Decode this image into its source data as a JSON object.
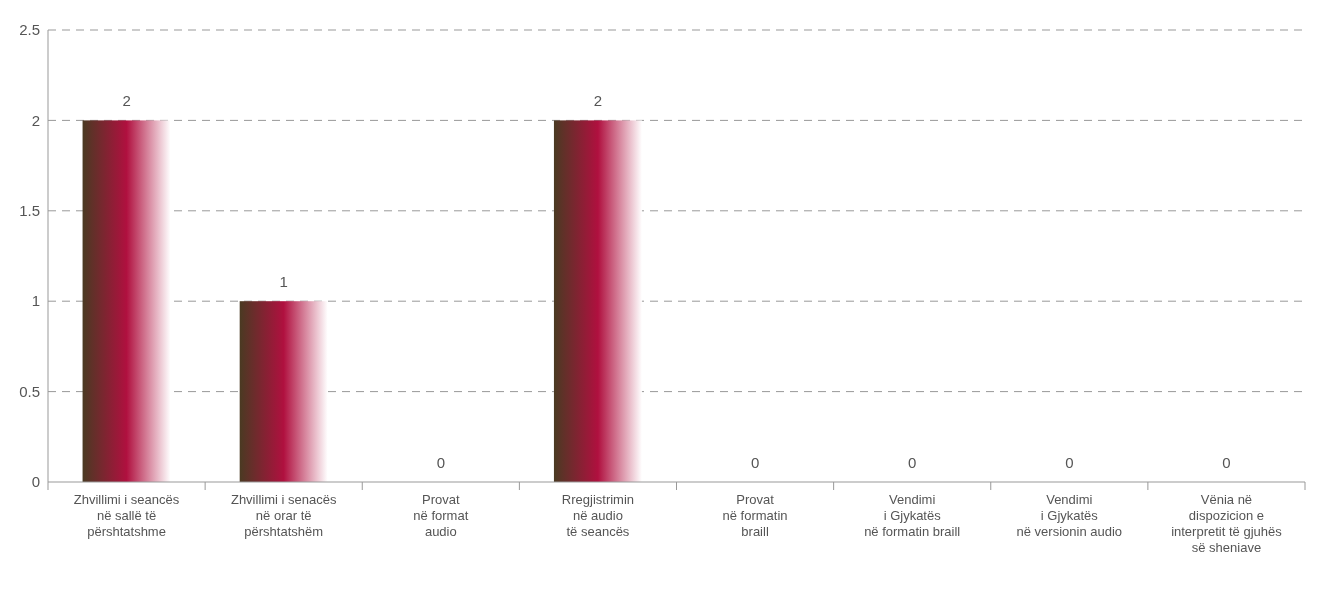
{
  "chart_data": {
    "type": "bar",
    "categories": [
      "Zhvillimi i seancës\nnë sallë të\npërshtatshme",
      "Zhvillimi i senacës\nnë orar të\npërshtatshëm",
      "Provat\nnë format\naudio",
      "Rregjistrimin\nnë audio\ntë seancës",
      "Provat\nnë formatin\nbraill",
      "Vendimi\ni Gjykatës\nnë formatin braill",
      "Vendimi\ni Gjykatës\nnë versionin audio",
      "Vënia në\ndispozicion e\ninterpretit të gjuhës\nsë sheniave"
    ],
    "values": [
      2,
      1,
      0,
      2,
      0,
      0,
      0,
      0
    ],
    "color": "#b0103f",
    "ylim": [
      0,
      2.5
    ],
    "yticks": [
      0,
      0.5,
      1,
      1.5,
      2,
      2.5
    ],
    "grid": "y",
    "data_labels": true
  }
}
